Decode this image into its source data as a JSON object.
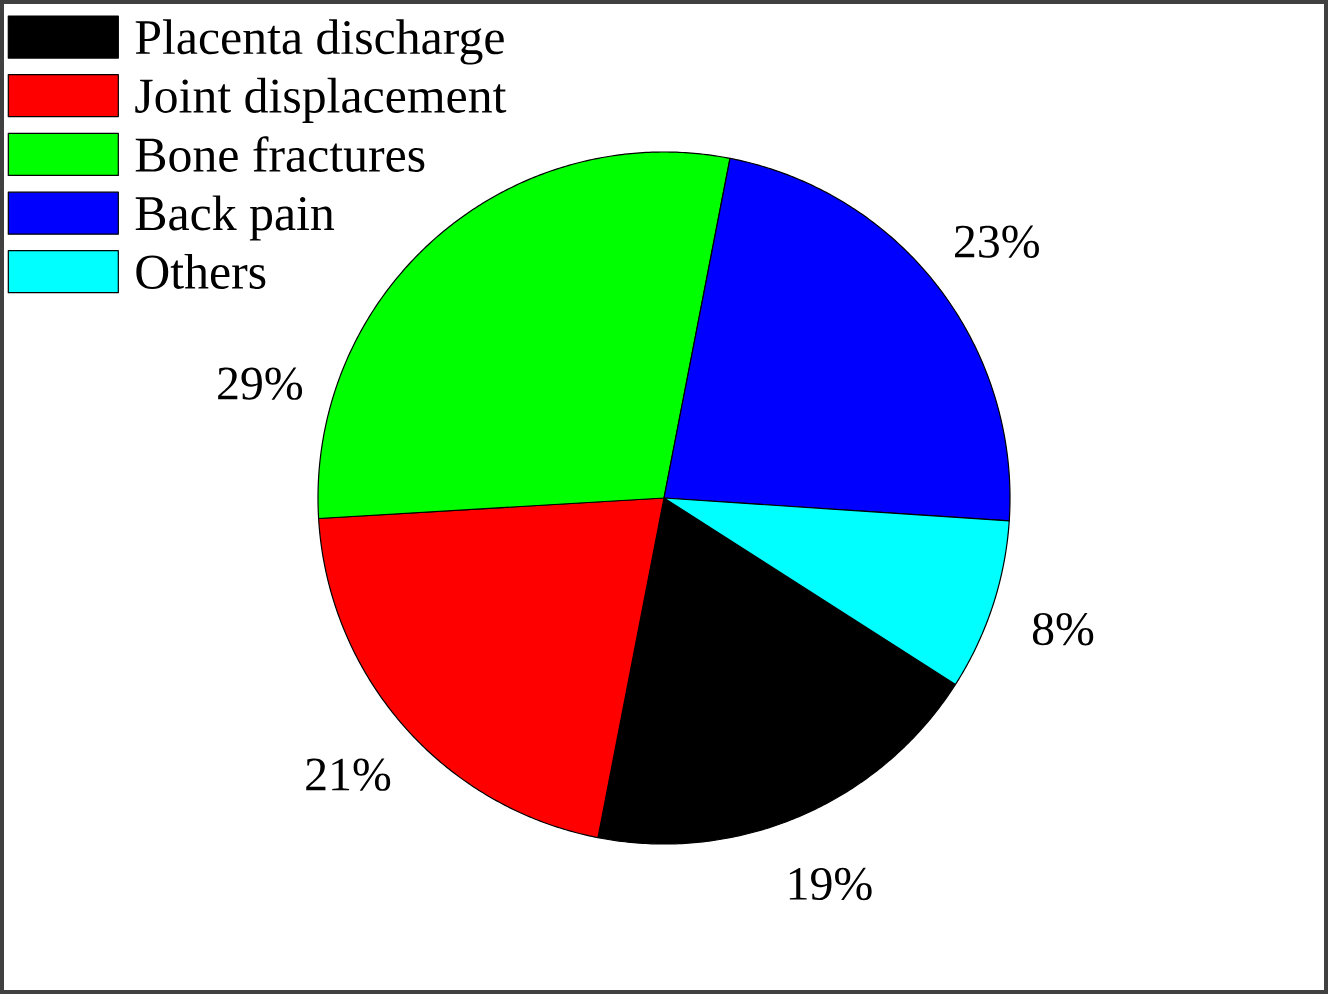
{
  "chart_data": {
    "type": "pie",
    "categories": [
      "Placenta discharge",
      "Joint displacement",
      "Bone fractures",
      "Back pain",
      "Others"
    ],
    "values": [
      19,
      21,
      29,
      23,
      8
    ],
    "colors": [
      "#000000",
      "#ff0000",
      "#00ff00",
      "#0000ff",
      "#00ffff"
    ],
    "value_labels": [
      "19%",
      "21%",
      "29%",
      "23%",
      "8%"
    ],
    "legend": "top left"
  }
}
